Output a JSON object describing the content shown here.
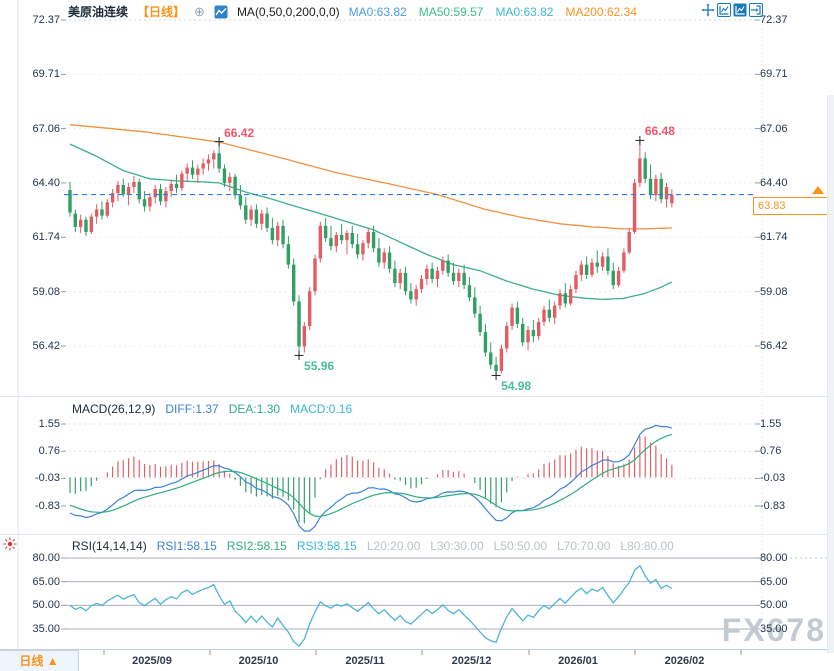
{
  "header": {
    "symbol": "美原油连续",
    "timeframe_tag": "【日线】",
    "ma_label": "MA(0,50,0,200,0,0)",
    "ma_values": [
      {
        "label": "MA0:63.82",
        "color": "#4a9ce8"
      },
      {
        "label": "MA50:59.57",
        "color": "#3dbd8a"
      },
      {
        "label": "MA0:63.82",
        "color": "#41b9d9"
      },
      {
        "label": "MA200:62.34",
        "color": "#f7941d"
      }
    ]
  },
  "icons": {
    "add_indicator": "⊕"
  },
  "macd_panel": {
    "title": "MACD(26,12,9)",
    "diff_label": "DIFF:1.37",
    "dea_label": "DEA:1.30",
    "macd_label": "MACD:0.16",
    "axis_labels": [
      "1.55",
      "0.76",
      "-0.03",
      "-0.83"
    ]
  },
  "rsi_panel": {
    "title": "RSI(14,14,14)",
    "rsi_values": [
      {
        "label": "RSI1:58.15",
        "color": "#3b82d8"
      },
      {
        "label": "RSI2:58.15",
        "color": "#2fae7c"
      },
      {
        "label": "RSI3:58.15",
        "color": "#37b6d8"
      }
    ],
    "level_labels": [
      "L20:20.00",
      "L30:30.00",
      "L50:50.00",
      "L70:70.00",
      "L80:80.00"
    ],
    "axis_labels": [
      "80.00",
      "65.00",
      "50.00",
      "35.00"
    ]
  },
  "footer": {
    "timeframe_label": "日线",
    "arrow": "▲"
  },
  "watermark": "FX678",
  "colors": {
    "bull": "#e25c66",
    "bear": "#2f9f63",
    "ma50_line": "#3cb08b",
    "ma200_line": "#f0923f",
    "current_price_line": "#2b7de0",
    "high_annotation": "#f2546e",
    "low_annotation": "#4abf9a",
    "accent_orange": "#f7941d",
    "axis_text": "#23364d",
    "diff_line": "#3b82d8",
    "dea_line": "#2fae7c",
    "rsi_line": "#4fb3d9",
    "hist_pos": "#e0606a",
    "hist_neg": "#3aa06a",
    "toolbar_blue": "#1878be"
  },
  "chart_data": {
    "type": "candlestick",
    "symbol": "美原油连续",
    "interval": "日线",
    "convention": "red = up candle, green = down candle",
    "current_price": "63.83",
    "y_axis": {
      "ticks": [
        72.37,
        69.71,
        67.06,
        64.4,
        61.74,
        59.08,
        56.42
      ]
    },
    "x_axis": {
      "labels": [
        "2025/09",
        "2025/10",
        "2025/11",
        "2025/12",
        "2026/01",
        "2026/02"
      ]
    },
    "annotations": [
      {
        "text": "66.42",
        "index": 28,
        "price": 66.42,
        "kind": "high"
      },
      {
        "text": "66.48",
        "index": 107,
        "price": 66.48,
        "kind": "high"
      },
      {
        "text": "55.96",
        "index": 43,
        "price": 55.96,
        "kind": "low"
      },
      {
        "text": "54.98",
        "index": 80,
        "price": 54.98,
        "kind": "low"
      }
    ],
    "ma50_keypoints": [
      [
        0,
        66.3
      ],
      [
        5,
        65.7
      ],
      [
        10,
        65.0
      ],
      [
        15,
        64.6
      ],
      [
        20,
        64.5
      ],
      [
        25,
        64.45
      ],
      [
        28,
        64.4
      ],
      [
        33,
        63.95
      ],
      [
        38,
        63.6
      ],
      [
        43,
        63.2
      ],
      [
        47,
        62.9
      ],
      [
        52,
        62.5
      ],
      [
        57,
        62.1
      ],
      [
        62,
        61.5
      ],
      [
        67,
        60.9
      ],
      [
        72,
        60.4
      ],
      [
        77,
        60.1
      ],
      [
        82,
        59.6
      ],
      [
        87,
        59.2
      ],
      [
        92,
        58.9
      ],
      [
        97,
        58.75
      ],
      [
        100,
        58.7
      ],
      [
        104,
        58.75
      ],
      [
        108,
        59.0
      ],
      [
        111,
        59.3
      ],
      [
        113,
        59.55
      ]
    ],
    "ma200_keypoints": [
      [
        0,
        67.25
      ],
      [
        14,
        66.9
      ],
      [
        28,
        66.4
      ],
      [
        40,
        65.6
      ],
      [
        50,
        64.9
      ],
      [
        60,
        64.35
      ],
      [
        69,
        63.83
      ],
      [
        78,
        63.1
      ],
      [
        85,
        62.7
      ],
      [
        92,
        62.4
      ],
      [
        98,
        62.25
      ],
      [
        104,
        62.15
      ],
      [
        108,
        62.15
      ],
      [
        113,
        62.2
      ]
    ],
    "indicators": {
      "macd": {
        "params": [
          26,
          12,
          9
        ],
        "diff": 1.37,
        "dea": 1.3,
        "macd": 0.16,
        "axis": [
          1.55,
          0.76,
          -0.03,
          -0.83
        ]
      },
      "rsi": {
        "params": [
          14,
          14,
          14
        ],
        "rsi1": 58.15,
        "rsi2": 58.15,
        "rsi3": 58.15,
        "axis": [
          80,
          65,
          50,
          35
        ]
      }
    },
    "candles": [
      [
        64.05,
        64.45,
        62.75,
        62.95
      ],
      [
        62.9,
        63.1,
        62.0,
        62.25
      ],
      [
        62.25,
        62.85,
        61.95,
        62.6
      ],
      [
        62.6,
        62.75,
        61.8,
        62.0
      ],
      [
        62.0,
        62.9,
        61.9,
        62.75
      ],
      [
        62.75,
        63.35,
        62.4,
        63.1
      ],
      [
        63.1,
        63.5,
        62.6,
        62.8
      ],
      [
        62.8,
        63.6,
        62.7,
        63.45
      ],
      [
        63.45,
        64.1,
        63.2,
        63.9
      ],
      [
        63.9,
        64.5,
        63.5,
        64.3
      ],
      [
        64.3,
        64.6,
        63.7,
        63.85
      ],
      [
        63.85,
        64.4,
        63.3,
        64.2
      ],
      [
        64.2,
        64.75,
        63.9,
        64.45
      ],
      [
        64.45,
        64.6,
        63.4,
        63.6
      ],
      [
        63.6,
        64.0,
        63.0,
        63.25
      ],
      [
        63.25,
        63.9,
        63.0,
        63.7
      ],
      [
        63.7,
        64.3,
        63.4,
        64.1
      ],
      [
        64.1,
        64.35,
        63.3,
        63.5
      ],
      [
        63.5,
        64.2,
        63.2,
        64.0
      ],
      [
        64.0,
        64.55,
        63.7,
        64.35
      ],
      [
        64.35,
        64.8,
        63.9,
        64.15
      ],
      [
        64.15,
        65.0,
        64.0,
        64.85
      ],
      [
        64.85,
        65.35,
        64.5,
        65.15
      ],
      [
        65.15,
        65.5,
        64.6,
        64.8
      ],
      [
        64.8,
        65.3,
        64.4,
        65.1
      ],
      [
        65.1,
        65.6,
        64.8,
        65.35
      ],
      [
        65.35,
        65.8,
        65.0,
        65.55
      ],
      [
        65.55,
        66.0,
        65.1,
        65.85
      ],
      [
        65.85,
        66.42,
        64.9,
        65.1
      ],
      [
        65.1,
        65.3,
        64.2,
        64.4
      ],
      [
        64.4,
        64.9,
        64.0,
        64.7
      ],
      [
        64.7,
        64.85,
        63.6,
        63.8
      ],
      [
        63.8,
        64.3,
        63.1,
        63.3
      ],
      [
        63.3,
        63.7,
        62.4,
        62.6
      ],
      [
        62.6,
        63.3,
        62.3,
        63.1
      ],
      [
        63.1,
        63.35,
        62.2,
        62.4
      ],
      [
        62.4,
        63.1,
        62.1,
        62.9
      ],
      [
        62.9,
        63.2,
        62.0,
        62.2
      ],
      [
        62.2,
        62.7,
        61.4,
        61.6
      ],
      [
        61.6,
        62.5,
        61.3,
        62.3
      ],
      [
        62.3,
        62.6,
        61.2,
        61.4
      ],
      [
        61.4,
        61.8,
        60.2,
        60.4
      ],
      [
        60.4,
        60.7,
        58.4,
        58.6
      ],
      [
        58.6,
        58.9,
        55.96,
        56.4
      ],
      [
        56.4,
        57.6,
        56.1,
        57.4
      ],
      [
        57.4,
        59.3,
        57.2,
        59.1
      ],
      [
        59.1,
        60.9,
        58.9,
        60.7
      ],
      [
        60.7,
        62.5,
        60.5,
        62.3
      ],
      [
        62.3,
        62.7,
        61.5,
        61.7
      ],
      [
        61.7,
        62.3,
        61.1,
        61.3
      ],
      [
        61.3,
        62.0,
        61.0,
        61.85
      ],
      [
        61.85,
        62.4,
        61.4,
        61.6
      ],
      [
        61.6,
        62.1,
        60.9,
        61.95
      ],
      [
        61.95,
        62.3,
        61.2,
        61.4
      ],
      [
        61.4,
        61.9,
        60.7,
        60.9
      ],
      [
        60.9,
        61.6,
        60.6,
        61.45
      ],
      [
        61.45,
        62.2,
        61.2,
        62.0
      ],
      [
        62.0,
        62.3,
        61.0,
        61.2
      ],
      [
        61.2,
        61.7,
        60.3,
        60.5
      ],
      [
        60.5,
        61.2,
        60.2,
        61.0
      ],
      [
        61.0,
        61.3,
        60.0,
        60.2
      ],
      [
        60.2,
        60.6,
        59.3,
        59.5
      ],
      [
        59.5,
        60.2,
        59.2,
        60.0
      ],
      [
        60.0,
        60.3,
        58.9,
        59.1
      ],
      [
        59.1,
        59.5,
        58.5,
        58.7
      ],
      [
        58.7,
        59.4,
        58.4,
        59.2
      ],
      [
        59.2,
        59.9,
        59.0,
        59.7
      ],
      [
        59.7,
        60.4,
        59.4,
        60.2
      ],
      [
        60.2,
        60.5,
        59.5,
        59.7
      ],
      [
        59.7,
        60.3,
        59.3,
        60.1
      ],
      [
        60.1,
        60.8,
        59.9,
        60.6
      ],
      [
        60.6,
        60.9,
        59.8,
        60.0
      ],
      [
        60.0,
        60.5,
        59.4,
        59.6
      ],
      [
        59.6,
        60.2,
        59.3,
        60.0
      ],
      [
        60.0,
        60.4,
        59.2,
        59.4
      ],
      [
        59.4,
        59.8,
        58.6,
        58.8
      ],
      [
        58.8,
        59.3,
        57.8,
        58.0
      ],
      [
        58.0,
        58.4,
        56.9,
        57.1
      ],
      [
        57.1,
        57.5,
        55.9,
        56.1
      ],
      [
        56.1,
        56.6,
        55.3,
        55.5
      ],
      [
        55.5,
        55.9,
        54.98,
        55.2
      ],
      [
        55.2,
        56.5,
        55.1,
        56.3
      ],
      [
        56.3,
        57.6,
        56.1,
        57.4
      ],
      [
        57.4,
        58.5,
        57.2,
        58.3
      ],
      [
        58.3,
        58.6,
        57.3,
        57.5
      ],
      [
        57.5,
        57.8,
        56.4,
        56.6
      ],
      [
        56.6,
        57.4,
        56.2,
        57.2
      ],
      [
        57.2,
        57.7,
        56.6,
        56.9
      ],
      [
        56.9,
        57.8,
        56.7,
        57.6
      ],
      [
        57.6,
        58.4,
        57.4,
        58.2
      ],
      [
        58.2,
        58.7,
        57.6,
        57.8
      ],
      [
        57.8,
        58.6,
        57.5,
        58.4
      ],
      [
        58.4,
        59.2,
        58.2,
        59.0
      ],
      [
        59.0,
        59.5,
        58.3,
        58.5
      ],
      [
        58.5,
        59.4,
        58.4,
        59.2
      ],
      [
        59.2,
        60.1,
        59.0,
        59.9
      ],
      [
        59.9,
        60.6,
        59.6,
        60.4
      ],
      [
        60.4,
        60.8,
        59.7,
        59.9
      ],
      [
        59.9,
        60.7,
        59.8,
        60.5
      ],
      [
        60.5,
        61.1,
        60.0,
        60.3
      ],
      [
        60.3,
        61.0,
        60.1,
        60.8
      ],
      [
        60.8,
        61.2,
        59.9,
        60.1
      ],
      [
        60.1,
        60.5,
        59.2,
        59.4
      ],
      [
        59.4,
        60.3,
        59.3,
        60.1
      ],
      [
        60.1,
        61.2,
        60.0,
        61.0
      ],
      [
        61.0,
        62.2,
        60.9,
        62.0
      ],
      [
        62.0,
        64.6,
        61.9,
        64.4
      ],
      [
        64.4,
        66.48,
        64.2,
        65.6
      ],
      [
        65.6,
        65.9,
        64.4,
        64.6
      ],
      [
        64.6,
        65.3,
        63.6,
        63.8
      ],
      [
        63.8,
        64.8,
        63.5,
        64.6
      ],
      [
        64.6,
        64.9,
        63.4,
        63.6
      ],
      [
        63.6,
        64.4,
        63.2,
        64.2
      ],
      [
        63.4,
        64.1,
        63.2,
        63.83
      ]
    ]
  }
}
